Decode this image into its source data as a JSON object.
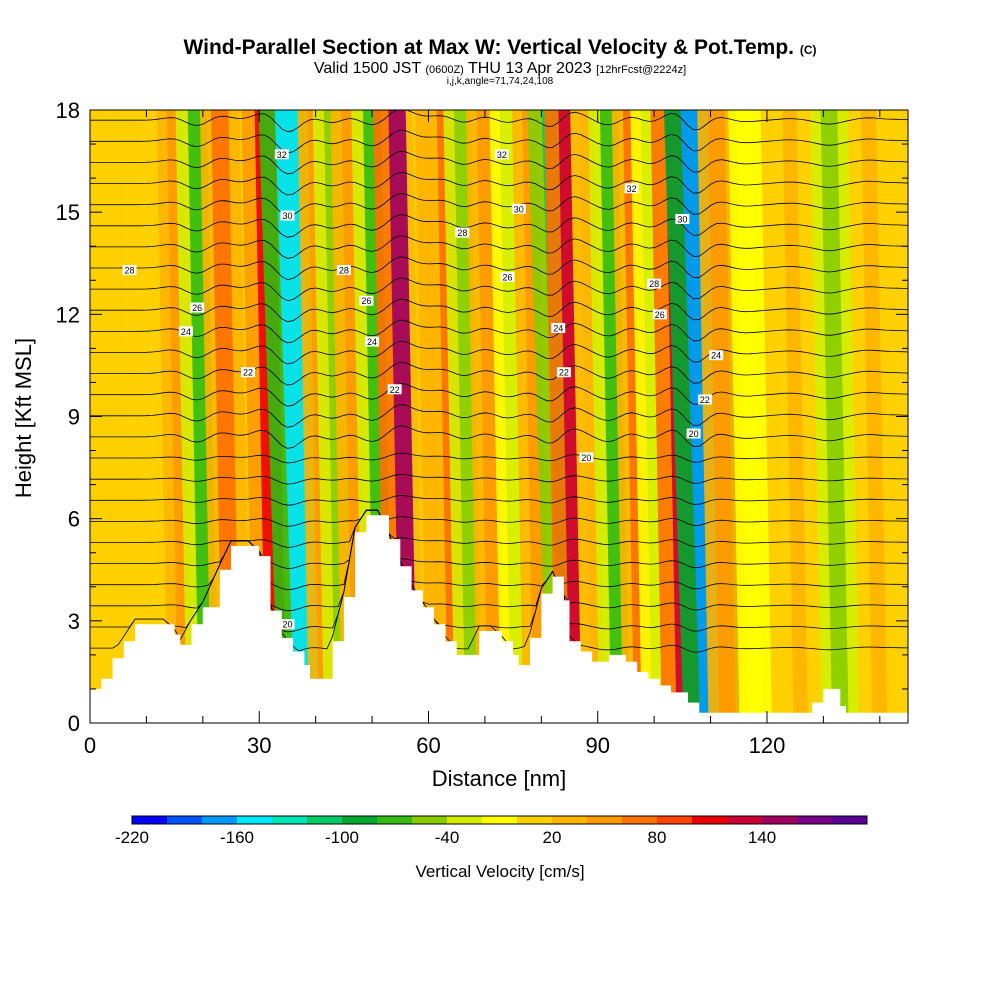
{
  "title": {
    "main": "Wind-Parallel Section at Max W: Vertical Velocity & Pot.Temp.",
    "copyright": "(C)",
    "valid_prefix": "Valid 1500 JST",
    "utc": "(0600Z)",
    "valid_suffix": "THU 13 Apr 2023",
    "forecast": "[12hrFcst@2224z]",
    "indices": "i,j,k,angle=71,74,24,108"
  },
  "chart_data": {
    "type": "heatmap",
    "xlabel": "Distance [nm]",
    "ylabel": "Height [Kft MSL]",
    "xlim": [
      0,
      145
    ],
    "ylim": [
      0,
      18
    ],
    "x_ticks": [
      0,
      30,
      60,
      90,
      120
    ],
    "y_ticks": [
      0,
      3,
      6,
      9,
      12,
      15,
      18
    ],
    "background_w_cms": 10,
    "w_bands": [
      {
        "x": 8,
        "w": 0
      },
      {
        "x": 15,
        "w": 40
      },
      {
        "x": 19,
        "w": -80
      },
      {
        "x": 23,
        "w": 60
      },
      {
        "x": 31,
        "w": 100
      },
      {
        "x": 35,
        "w": -160
      },
      {
        "x": 40,
        "w": 40
      },
      {
        "x": 43,
        "w": -60
      },
      {
        "x": 46,
        "w": 50
      },
      {
        "x": 50,
        "w": -70
      },
      {
        "x": 55,
        "w": 140
      },
      {
        "x": 59,
        "w": 30
      },
      {
        "x": 63,
        "w": 60
      },
      {
        "x": 66,
        "w": -50
      },
      {
        "x": 70,
        "w": 50
      },
      {
        "x": 74,
        "w": -40
      },
      {
        "x": 78,
        "w": 40
      },
      {
        "x": 82,
        "w": -120
      },
      {
        "x": 85,
        "w": 120
      },
      {
        "x": 88,
        "w": 20
      },
      {
        "x": 92,
        "w": -70
      },
      {
        "x": 96,
        "w": 60
      },
      {
        "x": 99,
        "w": -40
      },
      {
        "x": 104,
        "w": 130
      },
      {
        "x": 107,
        "w": -170
      },
      {
        "x": 111,
        "w": 50
      },
      {
        "x": 116,
        "w": -20
      },
      {
        "x": 124,
        "w": 20
      },
      {
        "x": 131,
        "w": -50
      },
      {
        "x": 138,
        "w": 30
      },
      {
        "x": 143,
        "w": 10
      }
    ],
    "terrain": [
      {
        "x": 0,
        "h": 1.0
      },
      {
        "x": 2,
        "h": 1.3
      },
      {
        "x": 4,
        "h": 1.9
      },
      {
        "x": 6,
        "h": 2.4
      },
      {
        "x": 8,
        "h": 2.9
      },
      {
        "x": 13,
        "h": 2.9
      },
      {
        "x": 15,
        "h": 2.6
      },
      {
        "x": 16,
        "h": 2.3
      },
      {
        "x": 18,
        "h": 2.9
      },
      {
        "x": 20,
        "h": 3.4
      },
      {
        "x": 23,
        "h": 4.5
      },
      {
        "x": 25,
        "h": 5.2
      },
      {
        "x": 28,
        "h": 5.2
      },
      {
        "x": 30,
        "h": 4.9
      },
      {
        "x": 32,
        "h": 3.3
      },
      {
        "x": 34,
        "h": 2.5
      },
      {
        "x": 36,
        "h": 2.1
      },
      {
        "x": 38,
        "h": 1.7
      },
      {
        "x": 39,
        "h": 1.3
      },
      {
        "x": 41,
        "h": 1.3
      },
      {
        "x": 43,
        "h": 2.4
      },
      {
        "x": 45,
        "h": 3.7
      },
      {
        "x": 47,
        "h": 5.6
      },
      {
        "x": 49,
        "h": 6.1
      },
      {
        "x": 51,
        "h": 6.1
      },
      {
        "x": 53,
        "h": 5.4
      },
      {
        "x": 55,
        "h": 4.6
      },
      {
        "x": 57,
        "h": 3.9
      },
      {
        "x": 59,
        "h": 3.4
      },
      {
        "x": 61,
        "h": 2.9
      },
      {
        "x": 63,
        "h": 2.4
      },
      {
        "x": 65,
        "h": 2.0
      },
      {
        "x": 67,
        "h": 2.0
      },
      {
        "x": 69,
        "h": 2.7
      },
      {
        "x": 71,
        "h": 2.7
      },
      {
        "x": 73,
        "h": 2.4
      },
      {
        "x": 75,
        "h": 2.0
      },
      {
        "x": 76,
        "h": 1.7
      },
      {
        "x": 78,
        "h": 2.5
      },
      {
        "x": 80,
        "h": 3.8
      },
      {
        "x": 82,
        "h": 4.3
      },
      {
        "x": 84,
        "h": 3.6
      },
      {
        "x": 85,
        "h": 2.4
      },
      {
        "x": 87,
        "h": 2.1
      },
      {
        "x": 89,
        "h": 1.8
      },
      {
        "x": 92,
        "h": 2.0
      },
      {
        "x": 95,
        "h": 1.8
      },
      {
        "x": 97,
        "h": 1.5
      },
      {
        "x": 99,
        "h": 1.3
      },
      {
        "x": 101,
        "h": 1.1
      },
      {
        "x": 103,
        "h": 0.9
      },
      {
        "x": 106,
        "h": 0.6
      },
      {
        "x": 108,
        "h": 0.3
      },
      {
        "x": 126,
        "h": 0.3
      },
      {
        "x": 128,
        "h": 0.6
      },
      {
        "x": 130,
        "h": 1.0
      },
      {
        "x": 131,
        "h": 1.0
      },
      {
        "x": 133,
        "h": 0.5
      },
      {
        "x": 134,
        "h": 0.3
      },
      {
        "x": 145,
        "h": 0.3
      }
    ],
    "theta_contour_labels": [
      {
        "text": "32",
        "x": 34,
        "y": 16.7
      },
      {
        "text": "30",
        "x": 35,
        "y": 14.9
      },
      {
        "text": "28",
        "x": 7,
        "y": 13.3
      },
      {
        "text": "26",
        "x": 19,
        "y": 12.2
      },
      {
        "text": "24",
        "x": 17,
        "y": 11.5
      },
      {
        "text": "22",
        "x": 28,
        "y": 10.3
      },
      {
        "text": "20",
        "x": 35,
        "y": 2.9
      },
      {
        "text": "28",
        "x": 45,
        "y": 13.3
      },
      {
        "text": "26",
        "x": 49,
        "y": 12.4
      },
      {
        "text": "24",
        "x": 50,
        "y": 11.2
      },
      {
        "text": "22",
        "x": 54,
        "y": 9.8
      },
      {
        "text": "32",
        "x": 73,
        "y": 16.7
      },
      {
        "text": "30",
        "x": 76,
        "y": 15.1
      },
      {
        "text": "28",
        "x": 66,
        "y": 14.4
      },
      {
        "text": "26",
        "x": 74,
        "y": 13.1
      },
      {
        "text": "24",
        "x": 83,
        "y": 11.6
      },
      {
        "text": "22",
        "x": 84,
        "y": 10.3
      },
      {
        "text": "20",
        "x": 88,
        "y": 7.8
      },
      {
        "text": "32",
        "x": 96,
        "y": 15.7
      },
      {
        "text": "30",
        "x": 105,
        "y": 14.8
      },
      {
        "text": "28",
        "x": 100,
        "y": 12.9
      },
      {
        "text": "26",
        "x": 101,
        "y": 12.0
      },
      {
        "text": "24",
        "x": 111,
        "y": 10.8
      },
      {
        "text": "22",
        "x": 109,
        "y": 9.5
      },
      {
        "text": "20",
        "x": 107,
        "y": 8.5
      }
    ]
  },
  "colorbar": {
    "label": "Vertical Velocity [cm/s]",
    "min": -220,
    "step": 20,
    "tick_labels": [
      "-220",
      "-160",
      "-100",
      "-40",
      "20",
      "80",
      "140"
    ],
    "colors": [
      "#0000ff",
      "#0055ff",
      "#0099ff",
      "#00e6ff",
      "#00e6b4",
      "#00cc66",
      "#00a830",
      "#33bb11",
      "#88cc00",
      "#d4ee00",
      "#ffff00",
      "#ffd000",
      "#ffb400",
      "#ff9900",
      "#ff7000",
      "#ff4400",
      "#ee0000",
      "#cc0033",
      "#a0005f",
      "#7a0088",
      "#5a0099"
    ]
  }
}
